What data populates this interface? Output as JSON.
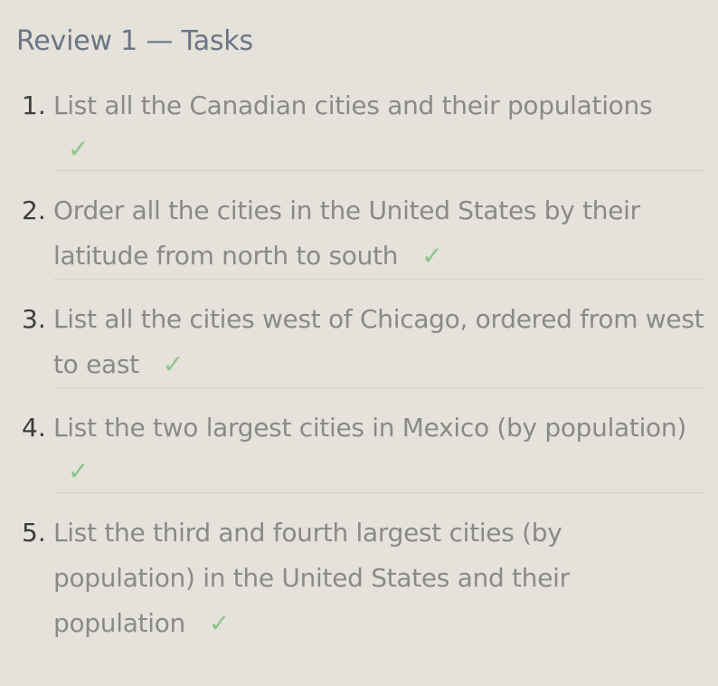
{
  "title": "Review 1 — Tasks",
  "tasks": [
    {
      "number": "1.",
      "text": "List all the Canadian cities and their populations",
      "check": "✓"
    },
    {
      "number": "2.",
      "text": "Order all the cities in the United States by their latitude from north to south",
      "check": "✓"
    },
    {
      "number": "3.",
      "text": "List all the cities west of Chicago, ordered from west to east",
      "check": "✓"
    },
    {
      "number": "4.",
      "text": "List the two largest cities in Mexico (by population)",
      "check": "✓"
    },
    {
      "number": "5.",
      "text": "List the third and fourth largest cities (by population) in the United States and their population",
      "check": "✓"
    }
  ],
  "colors": {
    "background": "#e4e2da",
    "title": "#6b7585",
    "task_text": "#8a8a86",
    "number": "#3c3c3c",
    "check": "#8cc58b",
    "divider": "#d3d1c9"
  }
}
